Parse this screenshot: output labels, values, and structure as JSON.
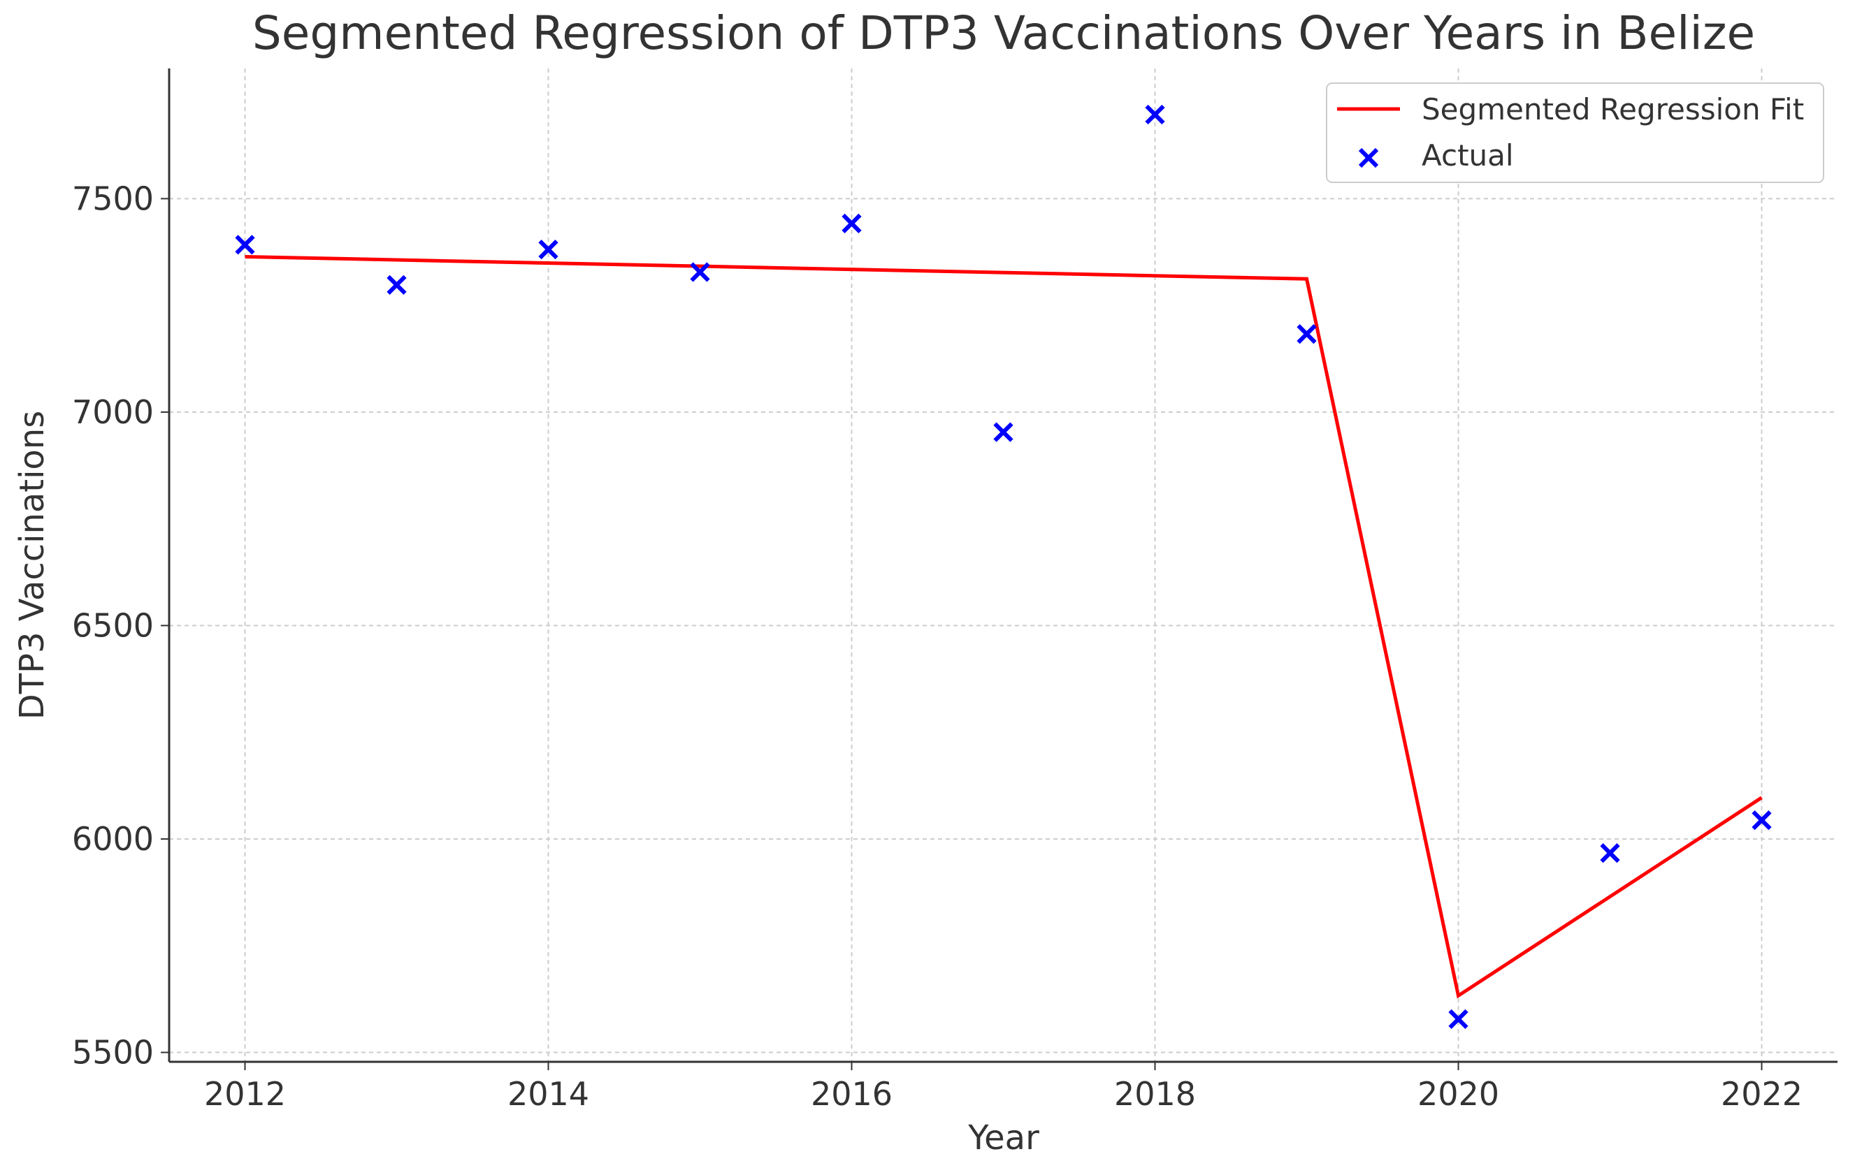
{
  "chart_data": {
    "type": "line",
    "title": "Segmented Regression of DTP3 Vaccinations Over Years in Belize",
    "xlabel": "Year",
    "ylabel": "DTP3 Vaccinations",
    "xlim": [
      2011.5,
      2022.5
    ],
    "ylim": [
      5478,
      7805
    ],
    "xticks": [
      2012,
      2014,
      2016,
      2018,
      2020,
      2022
    ],
    "yticks": [
      5500,
      6000,
      6500,
      7000,
      7500
    ],
    "grid": true,
    "legend_position": "top-right",
    "series": [
      {
        "name": "Segmented Regression Fit",
        "kind": "line",
        "color": "#ff0000",
        "x": [
          2012,
          2019,
          2020,
          2022
        ],
        "y": [
          7364,
          7312,
          5633,
          6097
        ]
      },
      {
        "name": "Actual",
        "kind": "scatter",
        "marker": "x",
        "color": "#0000ff",
        "x": [
          2012,
          2013,
          2014,
          2015,
          2016,
          2017,
          2018,
          2019,
          2020,
          2021,
          2022
        ],
        "y": [
          7392,
          7298,
          7381,
          7328,
          7442,
          6953,
          7697,
          7183,
          5578,
          5967,
          6044
        ]
      }
    ]
  }
}
